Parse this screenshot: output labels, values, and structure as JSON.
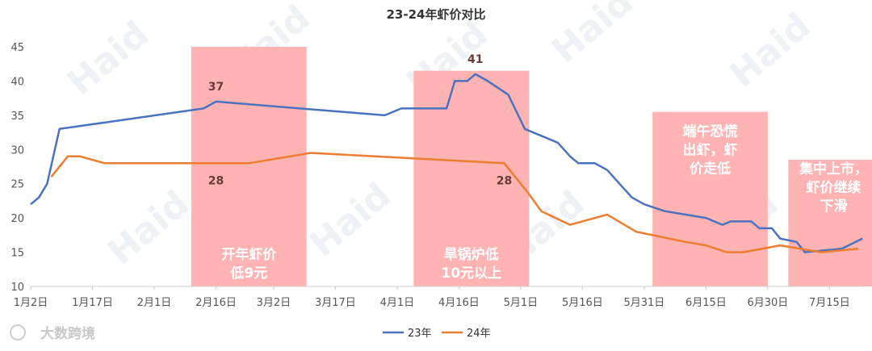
{
  "chart_data": {
    "type": "line",
    "title": "23-24年虾价对比",
    "xlabel": "",
    "ylabel": "",
    "ylim": [
      10,
      45
    ],
    "yticks": [
      10,
      15,
      20,
      25,
      30,
      35,
      40,
      45
    ],
    "xlim": [
      "2025-01-02",
      "2025-07-22"
    ],
    "xtick_labels": [
      {
        "date": "2025-01-02",
        "label": "1月2日"
      },
      {
        "date": "2025-01-17",
        "label": "1月17日"
      },
      {
        "date": "2025-02-01",
        "label": "2月1日"
      },
      {
        "date": "2025-02-16",
        "label": "2月16日"
      },
      {
        "date": "2025-03-02",
        "label": "3月2日"
      },
      {
        "date": "2025-03-17",
        "label": "3月17日"
      },
      {
        "date": "2025-04-01",
        "label": "4月1日"
      },
      {
        "date": "2025-04-16",
        "label": "4月16日"
      },
      {
        "date": "2025-05-01",
        "label": "5月1日"
      },
      {
        "date": "2025-05-16",
        "label": "5月16日"
      },
      {
        "date": "2025-05-31",
        "label": "5月31日"
      },
      {
        "date": "2025-06-15",
        "label": "6月15日"
      },
      {
        "date": "2025-06-30",
        "label": "6月30日"
      },
      {
        "date": "2025-07-15",
        "label": "7月15日"
      }
    ],
    "grid": false,
    "legend": "bottom-center",
    "series": [
      {
        "name": "23年",
        "color": "#4a72c0",
        "points": [
          [
            "2025-01-02",
            22
          ],
          [
            "2025-01-04",
            23
          ],
          [
            "2025-01-06",
            25
          ],
          [
            "2025-01-09",
            33
          ],
          [
            "2025-02-13",
            36
          ],
          [
            "2025-02-16",
            37
          ],
          [
            "2025-03-29",
            35
          ],
          [
            "2025-04-02",
            36
          ],
          [
            "2025-04-13",
            36
          ],
          [
            "2025-04-15",
            40
          ],
          [
            "2025-04-18",
            40
          ],
          [
            "2025-04-20",
            41
          ],
          [
            "2025-04-23",
            40
          ],
          [
            "2025-04-28",
            38
          ],
          [
            "2025-05-02",
            33
          ],
          [
            "2025-05-06",
            32
          ],
          [
            "2025-05-10",
            31
          ],
          [
            "2025-05-13",
            29
          ],
          [
            "2025-05-15",
            28
          ],
          [
            "2025-05-19",
            28
          ],
          [
            "2025-05-22",
            27
          ],
          [
            "2025-05-25",
            25
          ],
          [
            "2025-05-28",
            23
          ],
          [
            "2025-05-31",
            22
          ],
          [
            "2025-06-05",
            21
          ],
          [
            "2025-06-10",
            20.5
          ],
          [
            "2025-06-15",
            20
          ],
          [
            "2025-06-19",
            19
          ],
          [
            "2025-06-21",
            19.5
          ],
          [
            "2025-06-26",
            19.5
          ],
          [
            "2025-06-28",
            18.5
          ],
          [
            "2025-07-01",
            18.5
          ],
          [
            "2025-07-03",
            17
          ],
          [
            "2025-07-07",
            16.5
          ],
          [
            "2025-07-09",
            15
          ],
          [
            "2025-07-18",
            15.5
          ],
          [
            "2025-07-23",
            17
          ]
        ]
      },
      {
        "name": "24年",
        "color": "#ed7d31",
        "points": [
          [
            "2025-01-07",
            26
          ],
          [
            "2025-01-11",
            29
          ],
          [
            "2025-01-14",
            29
          ],
          [
            "2025-01-20",
            28
          ],
          [
            "2025-02-24",
            28
          ],
          [
            "2025-03-11",
            29.5
          ],
          [
            "2025-04-27",
            28
          ],
          [
            "2025-05-03",
            23.5
          ],
          [
            "2025-05-06",
            21
          ],
          [
            "2025-05-13",
            19
          ],
          [
            "2025-05-22",
            20.5
          ],
          [
            "2025-05-29",
            18
          ],
          [
            "2025-06-10",
            16.5
          ],
          [
            "2025-06-15",
            16
          ],
          [
            "2025-06-20",
            15
          ],
          [
            "2025-06-24",
            15
          ],
          [
            "2025-07-03",
            16
          ],
          [
            "2025-07-13",
            15
          ],
          [
            "2025-07-22",
            15.5
          ]
        ]
      }
    ],
    "data_labels": [
      {
        "text": "37",
        "date": "2025-02-16",
        "value": 37,
        "pos": "above"
      },
      {
        "text": "28",
        "date": "2025-02-16",
        "value": 28,
        "pos": "below"
      },
      {
        "text": "41",
        "date": "2025-04-20",
        "value": 41,
        "pos": "above"
      },
      {
        "text": "28",
        "date": "2025-04-27",
        "value": 28,
        "pos": "below"
      }
    ],
    "annotations": [
      {
        "start": "2025-02-10",
        "end": "2025-03-10",
        "top": 45,
        "lines": [
          "开年虾价",
          "低9元"
        ],
        "text_at": 14
      },
      {
        "start": "2025-04-05",
        "end": "2025-05-03",
        "top": 41.5,
        "lines": [
          "旱锅炉低",
          "10元以上"
        ],
        "text_at": 14
      },
      {
        "start": "2025-06-02",
        "end": "2025-06-30",
        "top": 35.5,
        "lines": [
          "端午恐慌",
          "出虾，虾",
          "价走低"
        ],
        "text_at": 32
      },
      {
        "start": "2025-07-05",
        "end": "2025-07-27",
        "top": 28.5,
        "lines": [
          "集中上市，",
          "虾价继续",
          "下滑"
        ],
        "text_at": 26.5
      }
    ],
    "annotation_color": "#ffb3b3",
    "watermark_text": "Haid",
    "brand_text": "大数跨境"
  }
}
